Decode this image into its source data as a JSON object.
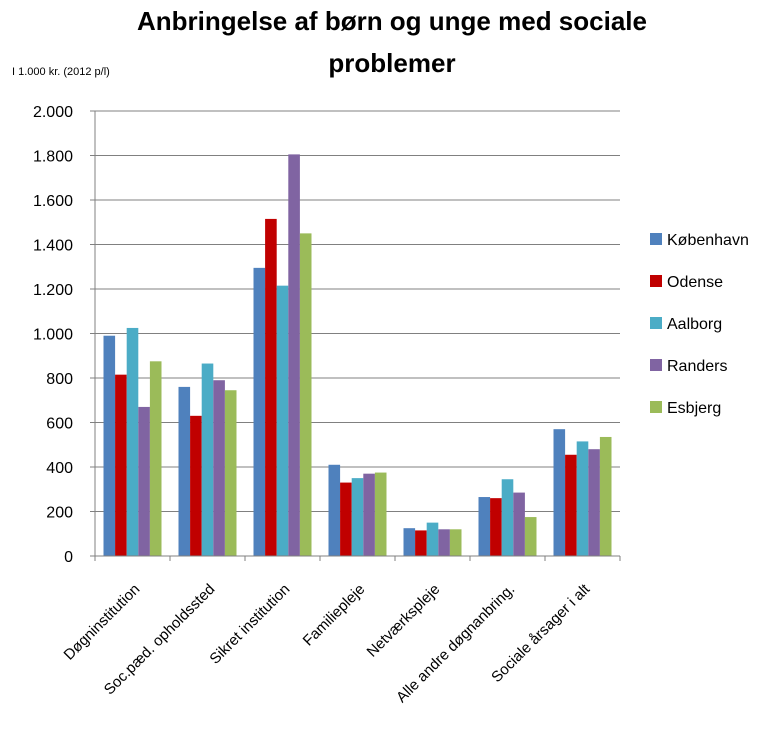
{
  "chart_data": {
    "type": "bar",
    "title_line1": "Anbringelse af børn og unge med sociale",
    "title_line2": "problemer",
    "unit_label": "I 1.000 kr. (2012 p/l)",
    "categories": [
      "Døgninstitution",
      "Soc.pæd. opholdssted",
      "Sikret institution",
      "Familiepleje",
      "Netværkspleje",
      "Alle andre døgnanbring.",
      "Sociale årsager i alt"
    ],
    "series": [
      {
        "name": "København",
        "color": "#4F81BD",
        "values": [
          990,
          760,
          1295,
          410,
          125,
          265,
          570
        ]
      },
      {
        "name": "Odense",
        "color": "#C00000",
        "values": [
          815,
          630,
          1515,
          330,
          115,
          260,
          455
        ]
      },
      {
        "name": "Aalborg",
        "color": "#4BACC6",
        "values": [
          1025,
          865,
          1215,
          350,
          150,
          345,
          515
        ]
      },
      {
        "name": "Randers",
        "color": "#8064A2",
        "values": [
          670,
          790,
          1805,
          370,
          120,
          285,
          480
        ]
      },
      {
        "name": "Esbjerg",
        "color": "#9BBB59",
        "values": [
          875,
          745,
          1450,
          375,
          120,
          175,
          535
        ]
      }
    ],
    "ylim": [
      0,
      2000
    ],
    "yticks": [
      {
        "value": 0,
        "label": "0"
      },
      {
        "value": 200,
        "label": "200"
      },
      {
        "value": 400,
        "label": "400"
      },
      {
        "value": 600,
        "label": "600"
      },
      {
        "value": 800,
        "label": "800"
      },
      {
        "value": 1000,
        "label": "1.000"
      },
      {
        "value": 1200,
        "label": "1.200"
      },
      {
        "value": 1400,
        "label": "1.400"
      },
      {
        "value": 1600,
        "label": "1.600"
      },
      {
        "value": 1800,
        "label": "1.800"
      },
      {
        "value": 2000,
        "label": "2.000"
      }
    ],
    "grid": true,
    "legend_position": "right"
  }
}
